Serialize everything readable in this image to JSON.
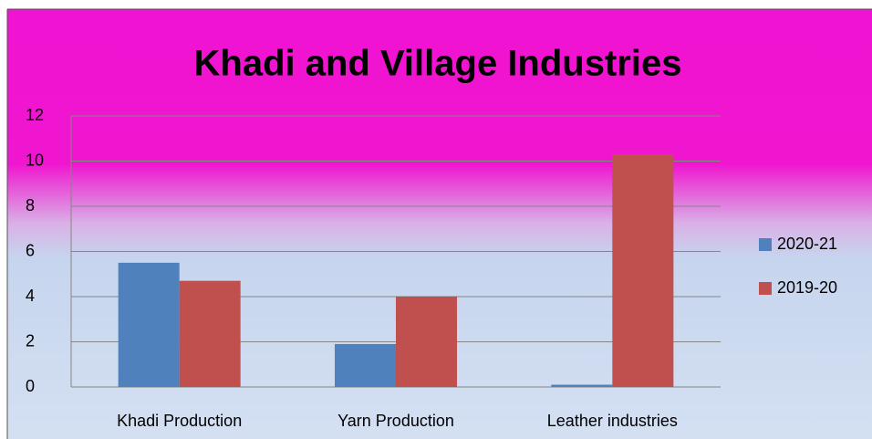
{
  "chart_data": {
    "type": "bar",
    "title": "Khadi and Village Industries",
    "categories": [
      "Khadi Production",
      "Yarn Production",
      "Leather industries"
    ],
    "series": [
      {
        "name": "2020-21",
        "color": "#4f81bd",
        "values": [
          5.5,
          1.9,
          0.1
        ]
      },
      {
        "name": "2019-20",
        "color": "#c0504d",
        "values": [
          4.7,
          4.0,
          10.3
        ]
      }
    ],
    "ylim": [
      0,
      12
    ],
    "yticks": [
      0,
      2,
      4,
      6,
      8,
      10,
      12
    ],
    "grid": true,
    "legend": "right"
  }
}
